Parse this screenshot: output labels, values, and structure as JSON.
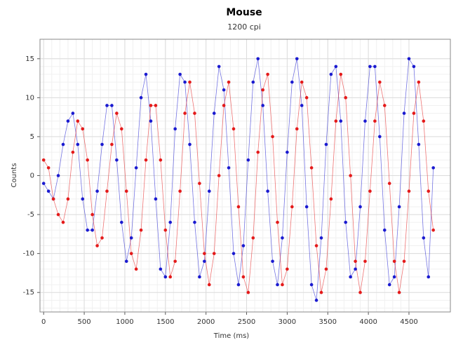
{
  "chart_data": {
    "type": "scatter-line",
    "title": "Mouse",
    "subtitle": "1200 cpi",
    "x_label": "Time (ms)",
    "y_label": "Counts",
    "x": [
      0,
      60,
      120,
      180,
      240,
      300,
      360,
      420,
      480,
      540,
      600,
      660,
      720,
      780,
      840,
      900,
      960,
      1020,
      1080,
      1140,
      1200,
      1260,
      1320,
      1380,
      1440,
      1500,
      1560,
      1620,
      1680,
      1740,
      1800,
      1860,
      1920,
      1980,
      2040,
      2100,
      2160,
      2220,
      2280,
      2340,
      2400,
      2460,
      2520,
      2580,
      2640,
      2700,
      2760,
      2820,
      2880,
      2940,
      3000,
      3060,
      3120,
      3180,
      3240,
      3300,
      3360,
      3420,
      3480,
      3540,
      3600,
      3660,
      3720,
      3780,
      3840,
      3900,
      3960,
      4020,
      4080,
      4140,
      4200,
      4260,
      4320,
      4380,
      4440,
      4500,
      4560,
      4620,
      4680,
      4740,
      4800
    ],
    "series": [
      {
        "color": "#1a1ad0",
        "values": [
          -1,
          -2,
          -3,
          0,
          4,
          7,
          8,
          4,
          -3,
          -7,
          -7,
          -2,
          4,
          9,
          9,
          2,
          -6,
          -11,
          -8,
          1,
          10,
          13,
          7,
          -3,
          -12,
          -13,
          -6,
          6,
          13,
          12,
          4,
          -6,
          -13,
          -11,
          -2,
          8,
          14,
          11,
          1,
          -10,
          -14,
          -9,
          2,
          12,
          15,
          9,
          -2,
          -11,
          -14,
          -8,
          3,
          12,
          15,
          9,
          -4,
          -14,
          -16,
          -8,
          4,
          13,
          14,
          7,
          -6,
          -13,
          -12,
          -4,
          7,
          14,
          14,
          5,
          -7,
          -14,
          -13,
          -4,
          8,
          15,
          14,
          4,
          -8,
          -13,
          1
        ]
      },
      {
        "color": "#e41a1a",
        "values": [
          2,
          1,
          -3,
          -5,
          -6,
          -3,
          3,
          7,
          6,
          2,
          -5,
          -9,
          -8,
          -2,
          4,
          8,
          6,
          -2,
          -10,
          -12,
          -7,
          2,
          9,
          9,
          2,
          -7,
          -13,
          -11,
          -2,
          8,
          12,
          8,
          -1,
          -10,
          -14,
          -10,
          0,
          9,
          12,
          6,
          -4,
          -13,
          -15,
          -8,
          3,
          11,
          13,
          5,
          -6,
          -14,
          -12,
          -4,
          6,
          12,
          10,
          1,
          -9,
          -15,
          -12,
          -3,
          7,
          13,
          10,
          0,
          -11,
          -15,
          -11,
          -2,
          7,
          12,
          9,
          -1,
          -11,
          -15,
          -11,
          -2,
          8,
          12,
          7,
          -2,
          -7
        ]
      }
    ],
    "xlim": [
      -45,
      5010
    ],
    "xticks": [
      0,
      500,
      1000,
      1500,
      2000,
      2500,
      3000,
      3500,
      4000,
      4500
    ],
    "ylim": [
      -17.5,
      17.5
    ],
    "yticks": [
      -15,
      -10,
      -5,
      0,
      5,
      10,
      15
    ],
    "grid": true,
    "minor_grid": true
  }
}
